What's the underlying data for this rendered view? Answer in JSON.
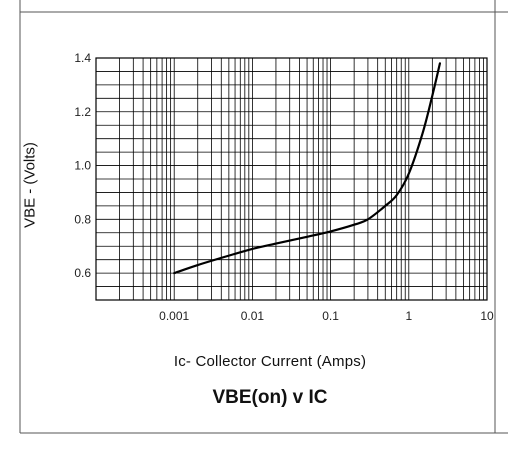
{
  "chart_data": {
    "type": "line",
    "x_scale": "log",
    "xlim": [
      0.0001,
      10
    ],
    "ylim": [
      0.5,
      1.4
    ],
    "x_ticks": [
      0.001,
      0.01,
      0.1,
      1,
      10
    ],
    "x_tick_labels": [
      "0.001",
      "0.01",
      "0.1",
      "1",
      "10"
    ],
    "y_ticks": [
      0.6,
      0.8,
      1.0,
      1.2,
      1.4
    ],
    "y_tick_labels": [
      "0.6",
      "0.8",
      "1.0",
      "1.2",
      "1.4"
    ],
    "grid": true,
    "ylabel": "VBE - (Volts)",
    "xlabel": "Ic- Collector Current (Amps)",
    "title": "VBE(on) v IC",
    "series": [
      {
        "x": [
          0.001,
          0.002,
          0.005,
          0.01,
          0.02,
          0.05,
          0.1,
          0.2,
          0.3,
          0.5,
          0.7,
          1.0,
          1.5,
          2.0,
          2.5
        ],
        "y": [
          0.6,
          0.63,
          0.665,
          0.69,
          0.71,
          0.735,
          0.755,
          0.78,
          0.8,
          0.85,
          0.89,
          0.97,
          1.12,
          1.26,
          1.38
        ]
      }
    ]
  }
}
